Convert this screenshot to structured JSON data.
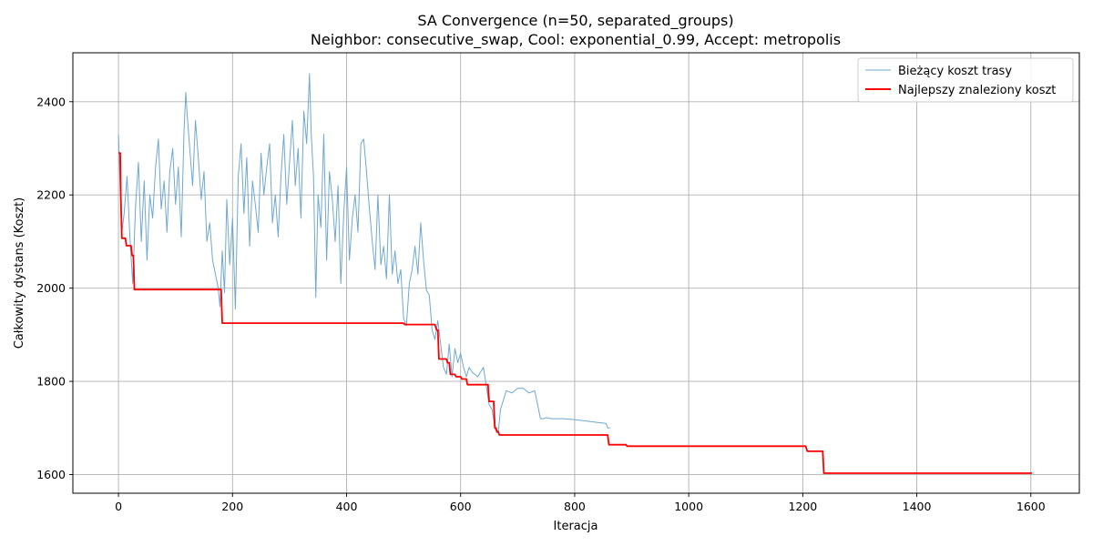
{
  "chart_data": {
    "type": "line",
    "title": "SA Convergence (n=50, separated_groups)",
    "subtitle": "Neighbor: consecutive_swap, Cool: exponential_0.99, Accept: metropolis",
    "xlabel": "Iteracja",
    "ylabel": "Całkowity dystans (Koszt)",
    "xlim": [
      -80,
      1685
    ],
    "ylim": [
      1560,
      2505
    ],
    "xticks": [
      0,
      200,
      400,
      600,
      800,
      1000,
      1200,
      1400,
      1600
    ],
    "yticks": [
      1600,
      1800,
      2000,
      2200,
      2400
    ],
    "grid": true,
    "legend": "top-right",
    "series": [
      {
        "name": "Bieżący koszt trasy",
        "color": "#6fa8d0",
        "x": [
          0,
          3,
          6,
          10,
          15,
          20,
          25,
          30,
          35,
          40,
          45,
          50,
          55,
          60,
          65,
          70,
          75,
          80,
          85,
          90,
          95,
          100,
          105,
          110,
          115,
          118,
          120,
          125,
          130,
          135,
          140,
          145,
          150,
          155,
          160,
          165,
          170,
          175,
          178,
          182,
          186,
          190,
          195,
          200,
          205,
          210,
          215,
          220,
          225,
          230,
          235,
          240,
          245,
          250,
          255,
          260,
          265,
          270,
          275,
          280,
          285,
          290,
          295,
          300,
          305,
          310,
          315,
          320,
          325,
          330,
          335,
          338,
          342,
          346,
          350,
          355,
          360,
          365,
          370,
          375,
          380,
          385,
          390,
          395,
          400,
          405,
          410,
          415,
          420,
          425,
          430,
          435,
          440,
          445,
          450,
          455,
          460,
          465,
          470,
          475,
          480,
          485,
          490,
          495,
          500,
          505,
          510,
          515,
          520,
          525,
          530,
          535,
          540,
          545,
          550,
          555,
          560,
          565,
          570,
          575,
          580,
          585,
          590,
          595,
          600,
          605,
          610,
          615,
          620,
          625,
          630,
          635,
          640,
          645,
          650,
          655,
          660,
          663,
          666,
          670,
          675,
          680,
          690,
          700,
          710,
          720,
          730,
          740,
          745,
          750,
          760,
          780,
          800,
          820,
          840,
          855,
          858,
          862
        ],
        "y": [
          2330,
          2210,
          2120,
          2160,
          2240,
          2110,
          2010,
          2180,
          2270,
          2100,
          2230,
          2060,
          2200,
          2150,
          2260,
          2320,
          2170,
          2230,
          2120,
          2250,
          2300,
          2180,
          2260,
          2110,
          2340,
          2420,
          2380,
          2300,
          2220,
          2360,
          2280,
          2190,
          2250,
          2100,
          2140,
          2060,
          2030,
          2000,
          1960,
          2080,
          1990,
          2190,
          2050,
          2150,
          1955,
          2240,
          2310,
          2160,
          2280,
          2090,
          2230,
          2180,
          2120,
          2290,
          2200,
          2260,
          2310,
          2140,
          2200,
          2110,
          2240,
          2330,
          2180,
          2270,
          2360,
          2220,
          2300,
          2150,
          2380,
          2310,
          2460,
          2330,
          2240,
          1980,
          2200,
          2130,
          2330,
          2060,
          2250,
          2190,
          2100,
          2220,
          2010,
          2160,
          2260,
          2060,
          2150,
          2200,
          2120,
          2310,
          2320,
          2250,
          2170,
          2100,
          2040,
          2200,
          2050,
          2090,
          2020,
          2200,
          2030,
          2080,
          2010,
          2040,
          1935,
          1920,
          2010,
          2040,
          2090,
          2030,
          2140,
          2060,
          1995,
          1985,
          1910,
          1890,
          1930,
          1880,
          1830,
          1815,
          1880,
          1810,
          1870,
          1840,
          1860,
          1830,
          1810,
          1830,
          1820,
          1815,
          1810,
          1820,
          1830,
          1790,
          1750,
          1740,
          1700,
          1690,
          1690,
          1740,
          1760,
          1780,
          1775,
          1785,
          1785,
          1775,
          1780,
          1720,
          1720,
          1722,
          1720,
          1720,
          1718,
          1715,
          1712,
          1710,
          1700,
          1700
        ]
      },
      {
        "name": "Najlepszy znaleziony koszt",
        "color": "#ff0000",
        "x": [
          0,
          3,
          4,
          6,
          8,
          12,
          14,
          18,
          20,
          22,
          24,
          26,
          28,
          180,
          182,
          500,
          502,
          555,
          558,
          560,
          562,
          575,
          577,
          580,
          582,
          590,
          592,
          600,
          602,
          610,
          612,
          648,
          650,
          658,
          660,
          662,
          664,
          666,
          668,
          858,
          860,
          890,
          892,
          1205,
          1208,
          1235,
          1237,
          1602
        ],
        "y": [
          2290,
          2290,
          2200,
          2107,
          2107,
          2107,
          2091,
          2091,
          2091,
          2091,
          2070,
          2070,
          1997,
          1997,
          1925,
          1925,
          1922,
          1922,
          1910,
          1910,
          1848,
          1848,
          1840,
          1840,
          1815,
          1815,
          1810,
          1810,
          1805,
          1805,
          1793,
          1793,
          1757,
          1757,
          1700,
          1700,
          1692,
          1692,
          1685,
          1685,
          1664,
          1664,
          1661,
          1661,
          1650,
          1650,
          1603,
          1603
        ]
      }
    ]
  }
}
